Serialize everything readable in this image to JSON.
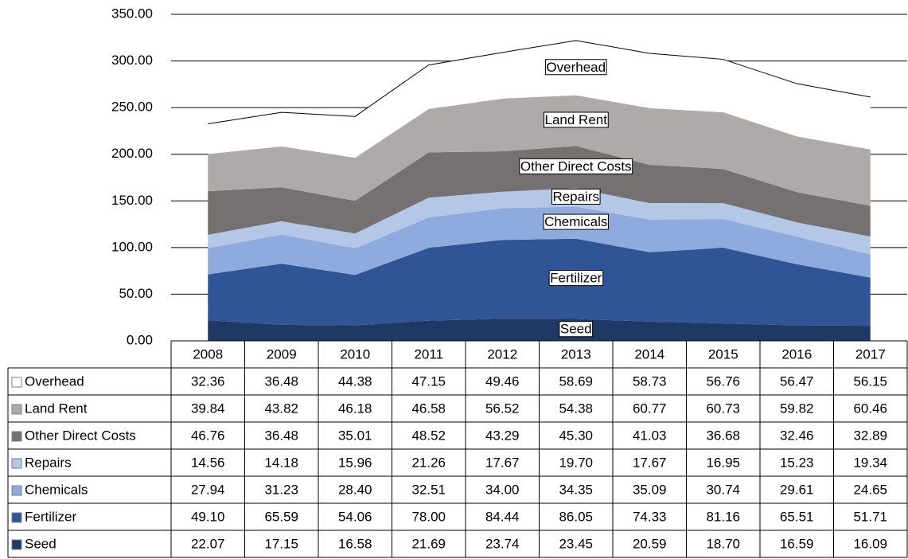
{
  "chart_data": {
    "type": "stacked-area",
    "categories": [
      "2008",
      "2009",
      "2010",
      "2011",
      "2012",
      "2013",
      "2014",
      "2015",
      "2016",
      "2017"
    ],
    "ylim": [
      0,
      350
    ],
    "yticks": [
      {
        "value": 0,
        "label": "0.00"
      },
      {
        "value": 50,
        "label": "50.00"
      },
      {
        "value": 100,
        "label": "100.00"
      },
      {
        "value": 150,
        "label": "150.00"
      },
      {
        "value": 200,
        "label": "200.00"
      },
      {
        "value": 250,
        "label": "250.00"
      },
      {
        "value": 300,
        "label": "300.00"
      },
      {
        "value": 350,
        "label": "350.00"
      }
    ],
    "grid": true,
    "series": [
      {
        "name": "Seed",
        "color": "#203864",
        "values": [
          22.07,
          17.15,
          16.58,
          21.69,
          23.74,
          23.45,
          20.59,
          18.7,
          16.59,
          16.09
        ],
        "value_labels": [
          "22.07",
          "17.15",
          "16.58",
          "21.69",
          "23.74",
          "23.45",
          "20.59",
          "18.70",
          "16.59",
          "16.09"
        ]
      },
      {
        "name": "Fertilizer",
        "color": "#2f5597",
        "values": [
          49.1,
          65.59,
          54.06,
          78.0,
          84.44,
          86.05,
          74.33,
          81.16,
          65.51,
          51.71
        ],
        "value_labels": [
          "49.10",
          "65.59",
          "54.06",
          "78.00",
          "84.44",
          "86.05",
          "74.33",
          "81.16",
          "65.51",
          "51.71"
        ]
      },
      {
        "name": "Chemicals",
        "color": "#8faadc",
        "values": [
          27.94,
          31.23,
          28.4,
          32.51,
          34.0,
          34.35,
          35.09,
          30.74,
          29.61,
          24.65
        ],
        "value_labels": [
          "27.94",
          "31.23",
          "28.40",
          "32.51",
          "34.00",
          "34.35",
          "35.09",
          "30.74",
          "29.61",
          "24.65"
        ]
      },
      {
        "name": "Repairs",
        "color": "#b4c7e7",
        "values": [
          14.56,
          14.18,
          15.96,
          21.26,
          17.67,
          19.7,
          17.67,
          16.95,
          15.23,
          19.34
        ],
        "value_labels": [
          "14.56",
          "14.18",
          "15.96",
          "21.26",
          "17.67",
          "19.70",
          "17.67",
          "16.95",
          "15.23",
          "19.34"
        ]
      },
      {
        "name": "Other Direct Costs",
        "color": "#767171",
        "values": [
          46.76,
          36.48,
          35.01,
          48.52,
          43.29,
          45.3,
          41.03,
          36.68,
          32.46,
          32.89
        ],
        "value_labels": [
          "46.76",
          "36.48",
          "35.01",
          "48.52",
          "43.29",
          "45.30",
          "41.03",
          "36.68",
          "32.46",
          "32.89"
        ]
      },
      {
        "name": "Land Rent",
        "color": "#aeaaaa",
        "values": [
          39.84,
          43.82,
          46.18,
          46.58,
          56.52,
          54.38,
          60.77,
          60.73,
          59.82,
          60.46
        ],
        "value_labels": [
          "39.84",
          "43.82",
          "46.18",
          "46.58",
          "56.52",
          "54.38",
          "60.77",
          "60.73",
          "59.82",
          "60.46"
        ]
      },
      {
        "name": "Overhead",
        "color": "#ffffff",
        "values": [
          32.36,
          36.48,
          44.38,
          47.15,
          49.46,
          58.69,
          58.73,
          56.76,
          56.47,
          56.15
        ],
        "value_labels": [
          "32.36",
          "36.48",
          "44.38",
          "47.15",
          "49.46",
          "58.69",
          "58.73",
          "56.76",
          "56.47",
          "56.15"
        ]
      }
    ]
  }
}
